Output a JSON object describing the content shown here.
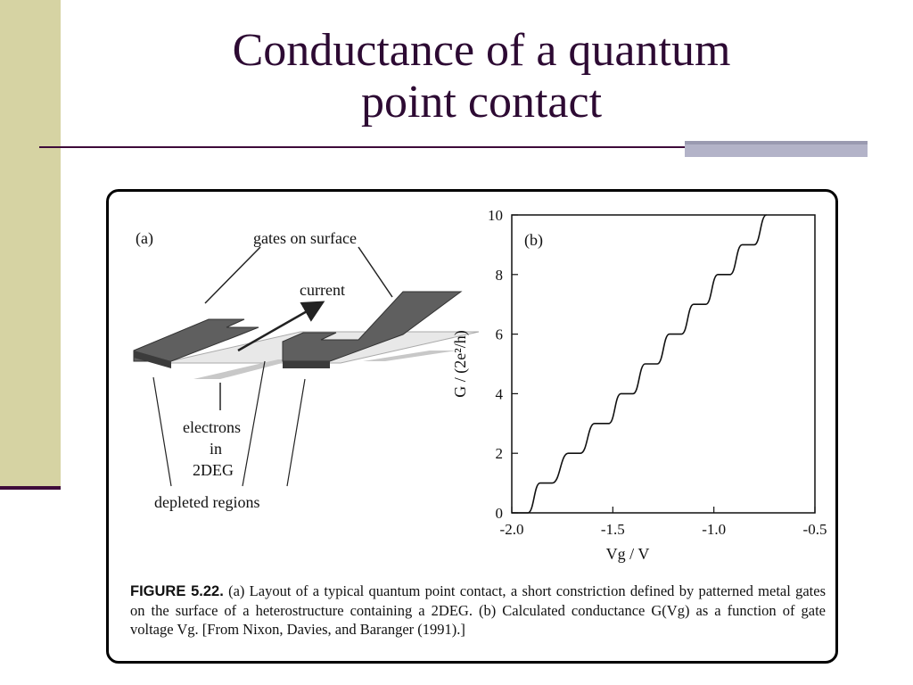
{
  "slide": {
    "title_line1": "Conductance of a quantum",
    "title_line2": "point contact"
  },
  "figure": {
    "panel_a": {
      "label": "(a)",
      "gates_label": "gates on surface",
      "current_label": "current",
      "electrons_line1": "electrons",
      "electrons_line2": "in",
      "electrons_line3": "2DEG",
      "depleted_label": "depleted regions"
    },
    "caption": {
      "figure_number": "FIGURE 5.22.",
      "text": "(a) Layout of a typical quantum point contact, a short constriction defined by patterned metal gates on the surface of a heterostructure containing a 2DEG. (b) Calculated conductance G(Vg) as a function of gate voltage Vg. [From Nixon, Davies, and Baranger (1991).]"
    }
  },
  "chart_data": {
    "type": "line",
    "panel_label": "(b)",
    "xlabel": "Vg / V",
    "ylabel": "G / (2e²/h)",
    "xlim": [
      -2.0,
      -0.5
    ],
    "ylim": [
      0,
      10
    ],
    "xticks": [
      "-2.0",
      "-1.5",
      "-1.0",
      "-0.5"
    ],
    "yticks": [
      "0",
      "2",
      "4",
      "6",
      "8",
      "10"
    ],
    "series": [
      {
        "x": [
          -2.0,
          -1.92,
          -1.86,
          -1.8,
          -1.72,
          -1.66,
          -1.59,
          -1.52,
          -1.46,
          -1.4,
          -1.34,
          -1.28,
          -1.22,
          -1.16,
          -1.1,
          -1.04,
          -0.98,
          -0.92,
          -0.86,
          -0.8,
          -0.74
        ],
        "y": [
          0,
          0,
          1,
          1,
          2,
          2,
          3,
          3,
          4,
          4,
          5,
          5,
          6,
          6,
          7,
          7,
          8,
          8,
          9,
          9,
          10
        ]
      }
    ]
  }
}
